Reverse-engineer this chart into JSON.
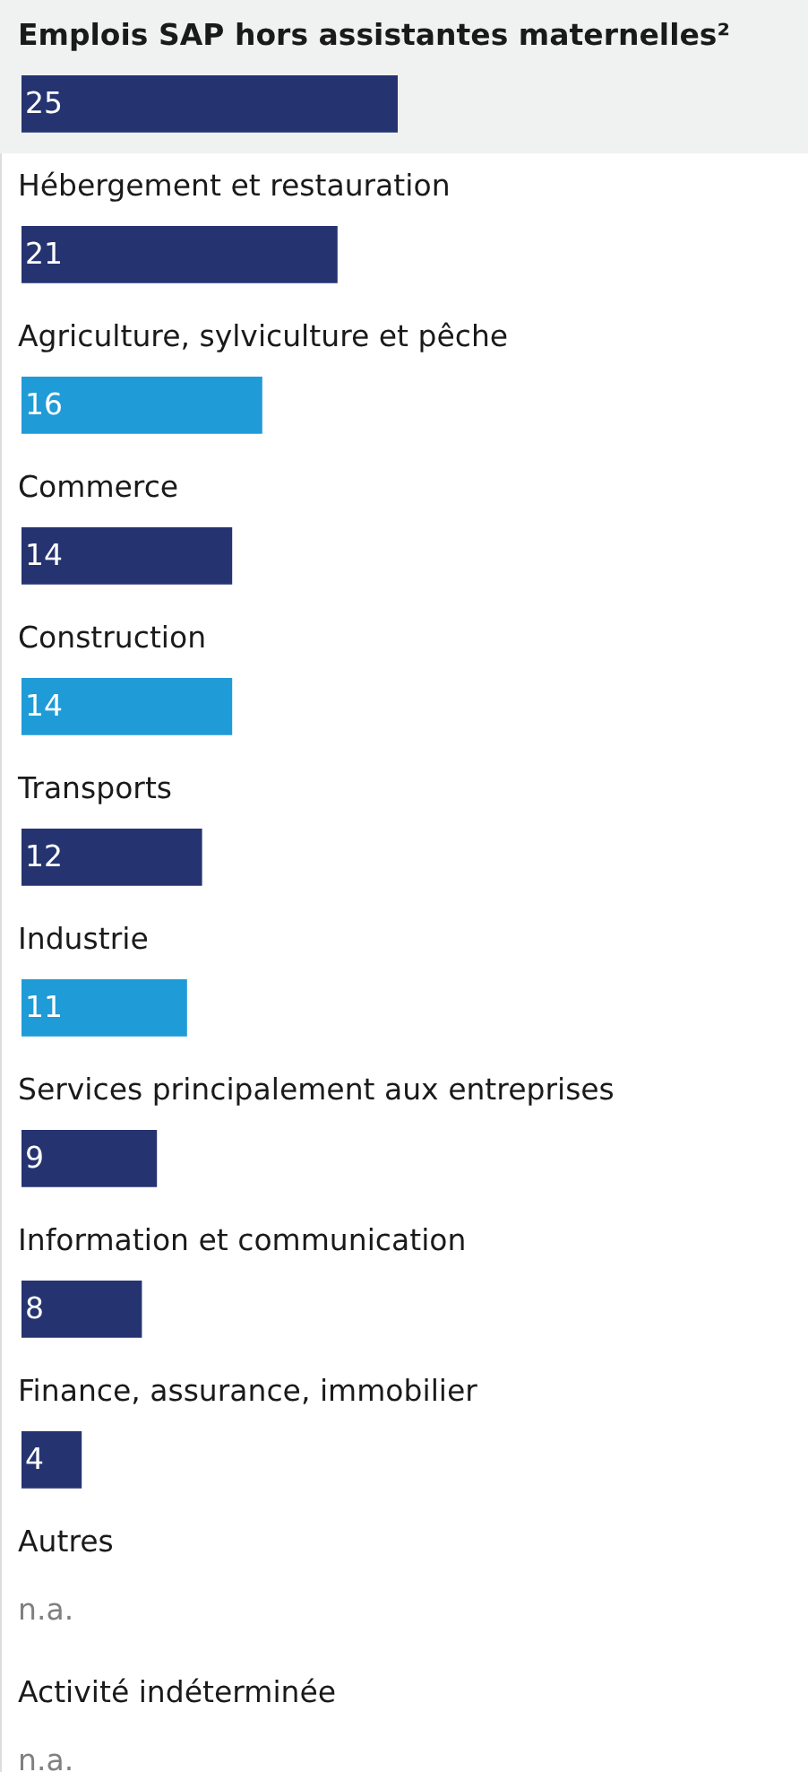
{
  "chart_data": {
    "type": "bar",
    "orientation": "horizontal",
    "categories": [
      "Emplois SAP hors assistantes maternelles²",
      "Hébergement et restauration",
      "Agriculture, sylviculture et pêche",
      "Commerce",
      "Construction",
      "Transports",
      "Industrie",
      "Services principalement aux entreprises",
      "Information et communication",
      "Finance, assurance, immobilier",
      "Autres",
      "Activité indéterminée"
    ],
    "values": [
      25,
      21,
      16,
      14,
      14,
      12,
      11,
      9,
      8,
      4,
      null,
      null
    ],
    "colors": [
      "#253470",
      "#253470",
      "#1f9bd7",
      "#253470",
      "#1f9bd7",
      "#253470",
      "#1f9bd7",
      "#253470",
      "#253470",
      "#253470",
      null,
      null
    ],
    "value_labels": [
      "25",
      "21",
      "16",
      "14",
      "14",
      "12",
      "11",
      "9",
      "8",
      "4",
      "n.a.",
      "n.a."
    ],
    "bands": [
      {
        "axis": "y",
        "from": "Emplois SAP hors assistantes maternelles²",
        "to": "Emplois SAP hors assistantes maternelles²",
        "color": "#f0f1f1"
      }
    ]
  }
}
